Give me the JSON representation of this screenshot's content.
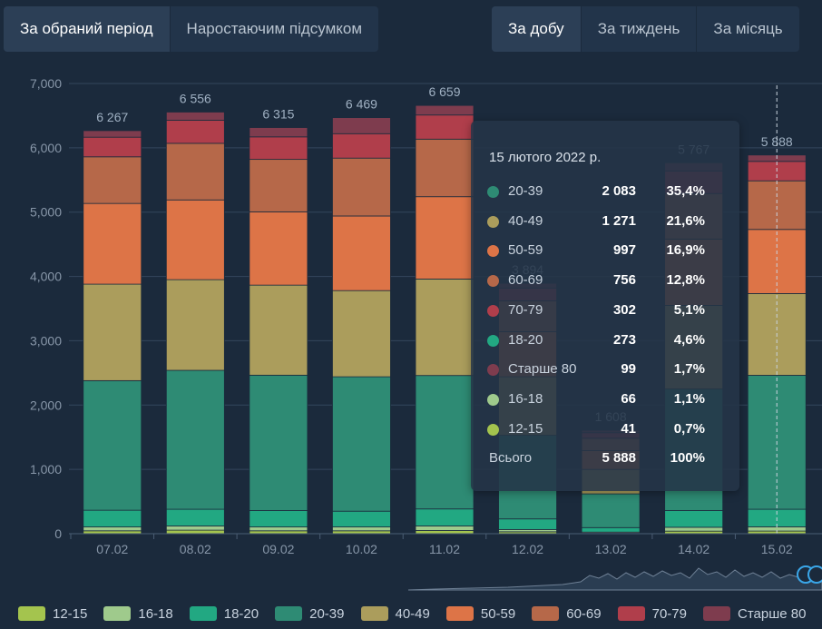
{
  "period_tabs": [
    {
      "label": "За обраний період",
      "active": true
    },
    {
      "label": "Наростаючим підсумком",
      "active": false
    }
  ],
  "granularity_tabs": [
    {
      "label": "За добу",
      "active": true
    },
    {
      "label": "За тиждень",
      "active": false
    },
    {
      "label": "За місяць",
      "active": false
    }
  ],
  "chart_data": {
    "type": "bar",
    "stacked": true,
    "categories": [
      "07.02",
      "08.02",
      "09.02",
      "10.02",
      "11.02",
      "12.02",
      "13.02",
      "14.02",
      "15.02"
    ],
    "ylim": [
      0,
      7000
    ],
    "y_ticks": [
      "0",
      "1,000",
      "2,000",
      "3,000",
      "4,000",
      "5,000",
      "6,000",
      "7,000"
    ],
    "totals": [
      "6 267",
      "6 556",
      "6 315",
      "6 469",
      "6 659",
      "3 894",
      "1 608",
      "5 767",
      "5 888"
    ],
    "totals_values": [
      6267,
      6556,
      6315,
      6469,
      6659,
      3894,
      1608,
      5767,
      5888
    ],
    "series": [
      {
        "name": "12-15",
        "color": "#a4c44e",
        "values": [
          45,
          55,
          45,
          45,
          50,
          30,
          10,
          40,
          41
        ]
      },
      {
        "name": "16-18",
        "color": "#9fca8c",
        "values": [
          60,
          65,
          60,
          60,
          70,
          35,
          15,
          60,
          66
        ]
      },
      {
        "name": "18-20",
        "color": "#22a882",
        "values": [
          260,
          260,
          255,
          245,
          265,
          165,
          70,
          260,
          273
        ]
      },
      {
        "name": "20-39",
        "color": "#2e8b74",
        "values": [
          2015,
          2160,
          2105,
          2090,
          2075,
          1300,
          525,
          1890,
          2083
        ]
      },
      {
        "name": "40-49",
        "color": "#ab9d5c",
        "values": [
          1500,
          1410,
          1400,
          1340,
          1500,
          910,
          380,
          1300,
          1271
        ]
      },
      {
        "name": "50-59",
        "color": "#dd7447",
        "values": [
          1255,
          1240,
          1140,
          1160,
          1280,
          700,
          290,
          1030,
          997
        ]
      },
      {
        "name": "60-69",
        "color": "#b66849",
        "values": [
          725,
          880,
          815,
          900,
          895,
          480,
          195,
          710,
          756
        ]
      },
      {
        "name": "70-79",
        "color": "#b03e4b",
        "values": [
          305,
          360,
          350,
          380,
          375,
          200,
          85,
          350,
          302
        ]
      },
      {
        "name": "Старше 80",
        "color": "#7e3c4e",
        "values": [
          102,
          126,
          145,
          249,
          149,
          74,
          38,
          127,
          99
        ]
      }
    ],
    "highlight_category": "15.02",
    "legend_position": "bottom",
    "grid": true
  },
  "tooltip": {
    "date": "15 лютого 2022 р.",
    "rows": [
      {
        "name": "20-39",
        "value": "2 083",
        "pct": "35,4%",
        "color": "#2e8b74"
      },
      {
        "name": "40-49",
        "value": "1 271",
        "pct": "21,6%",
        "color": "#ab9d5c"
      },
      {
        "name": "50-59",
        "value": "997",
        "pct": "16,9%",
        "color": "#dd7447"
      },
      {
        "name": "60-69",
        "value": "756",
        "pct": "12,8%",
        "color": "#b66849"
      },
      {
        "name": "70-79",
        "value": "302",
        "pct": "5,1%",
        "color": "#b03e4b"
      },
      {
        "name": "18-20",
        "value": "273",
        "pct": "4,6%",
        "color": "#22a882"
      },
      {
        "name": "Старше 80",
        "value": "99",
        "pct": "1,7%",
        "color": "#7e3c4e"
      },
      {
        "name": "16-18",
        "value": "66",
        "pct": "1,1%",
        "color": "#9fca8c"
      },
      {
        "name": "12-15",
        "value": "41",
        "pct": "0,7%",
        "color": "#a4c44e"
      }
    ],
    "total": {
      "name": "Всього",
      "value": "5 888",
      "pct": "100%"
    }
  }
}
